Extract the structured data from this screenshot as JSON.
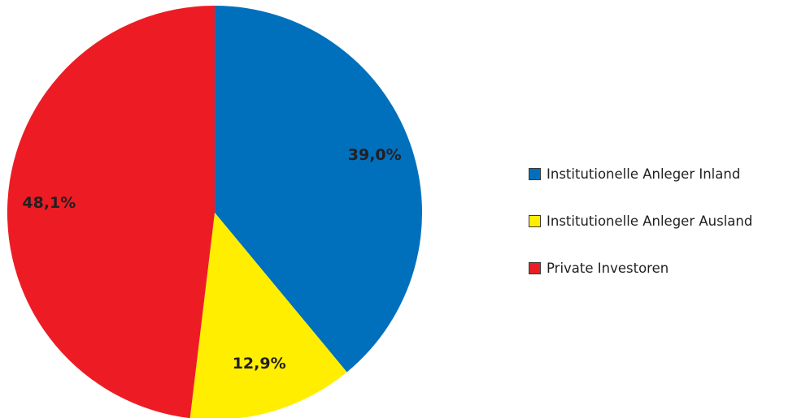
{
  "chart_data": {
    "type": "pie",
    "slices": [
      {
        "name": "Institutionelle Anleger Inland",
        "value": 39.0,
        "label": "39,0%",
        "color": "#0070bd"
      },
      {
        "name": "Institutionelle Anleger Ausland",
        "value": 12.9,
        "label": "12,9%",
        "color": "#ffee00"
      },
      {
        "name": "Private Investoren",
        "value": 48.1,
        "label": "48,1%",
        "color": "#ed1c24"
      }
    ],
    "legend_position": "right"
  }
}
